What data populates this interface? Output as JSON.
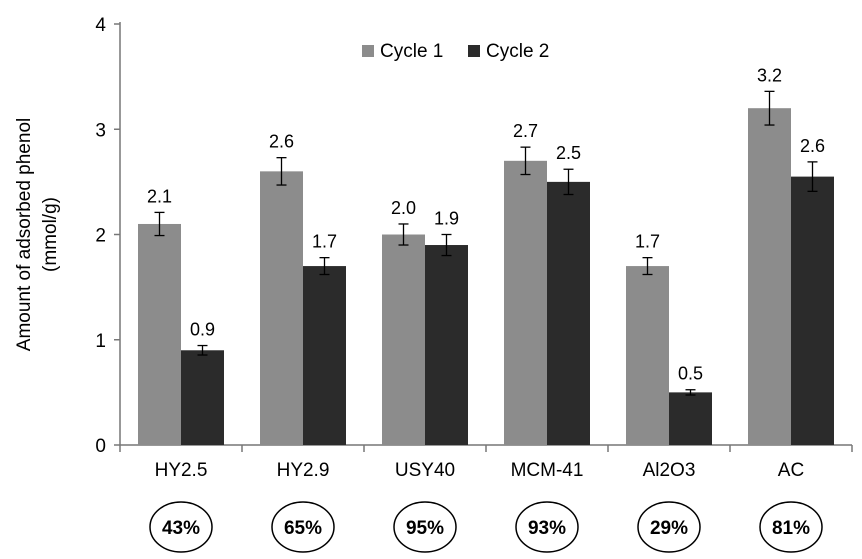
{
  "chart_data": {
    "type": "bar",
    "title": "",
    "xlabel": "",
    "ylabel": [
      "Amount of adsorbed phenol",
      "(mmol/g)"
    ],
    "ylim": [
      0,
      4
    ],
    "yticks": [
      0,
      1,
      2,
      3,
      4
    ],
    "grid": false,
    "legend_position": "top-center",
    "categories": [
      "HY2.5",
      "HY2.9",
      "USY40",
      "MCM-41",
      "Al2O3",
      "AC"
    ],
    "series": [
      {
        "name": "Cycle 1",
        "color": "#8c8c8c",
        "values": [
          2.1,
          2.6,
          2.0,
          2.7,
          1.7,
          3.2
        ],
        "labels": [
          "2.1",
          "2.6",
          "2.0",
          "2.7",
          "1.7",
          "3.2"
        ],
        "errors": [
          0.11,
          0.13,
          0.1,
          0.13,
          0.08,
          0.16
        ]
      },
      {
        "name": "Cycle 2",
        "color": "#2b2b2b",
        "values": [
          0.9,
          1.7,
          1.9,
          2.5,
          0.5,
          2.55
        ],
        "labels": [
          "0.9",
          "1.7",
          "1.9",
          "2.5",
          "0.5",
          "2.6"
        ],
        "errors": [
          0.045,
          0.08,
          0.1,
          0.12,
          0.025,
          0.14
        ]
      }
    ],
    "retention": [
      "43%",
      "65%",
      "95%",
      "93%",
      "29%",
      "81%"
    ]
  }
}
